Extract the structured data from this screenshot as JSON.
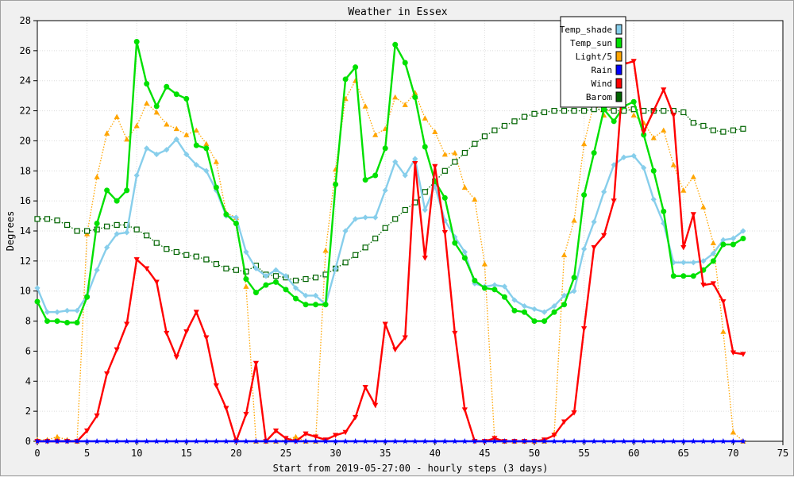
{
  "chart_data": {
    "type": "line",
    "title": "Weather in Essex",
    "xlabel": "Start from 2019-05-27:00 - hourly steps (3 days)",
    "ylabel": "Degrees",
    "xlim": [
      0,
      75
    ],
    "ylim": [
      0,
      28
    ],
    "x_ticks": [
      0,
      5,
      10,
      15,
      20,
      25,
      30,
      35,
      40,
      45,
      50,
      55,
      60,
      65,
      70,
      75
    ],
    "y_ticks": [
      0,
      2,
      4,
      6,
      8,
      10,
      12,
      14,
      16,
      18,
      20,
      22,
      24,
      26,
      28
    ],
    "grid": true,
    "legend_position": "top-right",
    "series": [
      {
        "name": "Temp_shade",
        "color": "#87ceeb",
        "marker": "diamond",
        "style": "solid",
        "values": [
          10.2,
          8.6,
          8.6,
          8.7,
          8.7,
          9.7,
          11.4,
          12.9,
          13.8,
          13.9,
          17.7,
          19.5,
          19.1,
          19.4,
          20.1,
          19.1,
          18.4,
          18.0,
          16.7,
          15.0,
          14.9,
          12.6,
          11.5,
          11.0,
          11.4,
          11.0,
          10.2,
          9.7,
          9.7,
          9.1,
          11.5,
          14.0,
          14.8,
          14.9,
          14.9,
          16.7,
          18.6,
          17.7,
          18.8,
          15.4,
          17.0,
          14.7,
          13.6,
          12.6,
          10.5,
          10.3,
          10.4,
          10.3,
          9.4,
          9.0,
          8.8,
          8.6,
          9.0,
          9.7,
          10.0,
          12.8,
          14.6,
          16.6,
          18.4,
          18.9,
          19.0,
          18.2,
          16.1,
          14.5,
          11.9,
          11.9,
          11.9,
          12.0,
          12.5,
          13.4,
          13.5,
          14.0
        ]
      },
      {
        "name": "Temp_sun",
        "color": "#00e000",
        "marker": "circle",
        "style": "solid",
        "values": [
          9.3,
          8.0,
          8.0,
          7.9,
          7.9,
          9.6,
          14.5,
          16.7,
          16.0,
          16.7,
          26.6,
          23.8,
          22.3,
          23.6,
          23.1,
          22.8,
          19.7,
          19.5,
          16.9,
          15.1,
          14.5,
          10.8,
          9.9,
          10.4,
          10.6,
          10.1,
          9.5,
          9.1,
          9.1,
          9.1,
          17.1,
          24.1,
          24.9,
          17.4,
          17.7,
          19.5,
          26.4,
          25.2,
          22.9,
          19.6,
          17.3,
          16.2,
          13.2,
          12.2,
          10.7,
          10.2,
          10.1,
          9.6,
          8.7,
          8.6,
          8.0,
          8.0,
          8.6,
          9.1,
          10.9,
          16.4,
          19.2,
          22.1,
          21.3,
          22.3,
          22.6,
          20.4,
          18.0,
          15.3,
          11.0,
          11.0,
          11.0,
          11.4,
          12.0,
          13.1,
          13.1,
          13.5
        ]
      },
      {
        "name": "Light/5",
        "color": "#ffa500",
        "marker": "triangle-up",
        "style": "dotted",
        "values": [
          0.1,
          0.1,
          0.3,
          0.1,
          0.0,
          13.8,
          17.6,
          20.5,
          21.6,
          20.1,
          21.0,
          22.5,
          21.9,
          21.1,
          20.8,
          20.4,
          20.7,
          19.8,
          18.6,
          15.2,
          14.9,
          10.3,
          0.0,
          0.0,
          0.0,
          0.1,
          0.3,
          0.0,
          0.0,
          12.7,
          18.1,
          22.8,
          24.0,
          22.3,
          20.4,
          20.8,
          22.9,
          22.4,
          23.2,
          21.5,
          20.6,
          19.1,
          19.2,
          16.9,
          16.1,
          11.8,
          0.1,
          0.0,
          0.0,
          0.0,
          0.0,
          0.0,
          0.5,
          12.4,
          14.7,
          19.8,
          22.5,
          21.7,
          22.4,
          22.7,
          21.7,
          21.2,
          20.2,
          20.7,
          18.4,
          16.7,
          17.6,
          15.6,
          13.2,
          7.3,
          0.6,
          0.0
        ]
      },
      {
        "name": "Rain",
        "color": "#0000ff",
        "marker": "star",
        "style": "solid",
        "values": [
          0,
          0,
          0,
          0,
          0,
          0,
          0,
          0,
          0,
          0,
          0,
          0,
          0,
          0,
          0,
          0,
          0,
          0,
          0,
          0,
          0,
          0,
          0,
          0,
          0,
          0,
          0,
          0,
          0,
          0,
          0,
          0,
          0,
          0,
          0,
          0,
          0,
          0,
          0,
          0,
          0,
          0,
          0,
          0,
          0,
          0,
          0,
          0,
          0,
          0,
          0,
          0,
          0,
          0,
          0,
          0,
          0,
          0,
          0,
          0,
          0,
          0,
          0,
          0,
          0,
          0,
          0,
          0,
          0,
          0,
          0,
          0
        ]
      },
      {
        "name": "Wind",
        "color": "#ff0000",
        "marker": "triangle-down",
        "style": "solid",
        "values": [
          0.0,
          0.0,
          0.0,
          0.0,
          0.0,
          0.7,
          1.7,
          4.5,
          6.1,
          7.8,
          12.1,
          11.5,
          10.6,
          7.2,
          5.6,
          7.3,
          8.6,
          6.9,
          3.7,
          2.2,
          0.0,
          1.8,
          5.2,
          0.0,
          0.7,
          0.2,
          0.0,
          0.5,
          0.3,
          0.1,
          0.4,
          0.6,
          1.6,
          3.6,
          2.4,
          7.8,
          6.1,
          6.9,
          18.5,
          12.2,
          18.3,
          13.9,
          7.2,
          2.1,
          0.0,
          0.0,
          0.2,
          0.0,
          0.0,
          0.0,
          0.0,
          0.1,
          0.4,
          1.3,
          1.9,
          7.5,
          12.9,
          13.7,
          16.0,
          25.1,
          25.3,
          20.6,
          22.0,
          23.4,
          21.7,
          12.9,
          15.1,
          10.4,
          10.5,
          9.3,
          5.9,
          5.8
        ]
      },
      {
        "name": "Barom",
        "color": "#006400",
        "marker": "square",
        "style": "dotted",
        "values": [
          14.8,
          14.8,
          14.7,
          14.4,
          14.0,
          14.0,
          14.1,
          14.3,
          14.4,
          14.4,
          14.1,
          13.7,
          13.2,
          12.8,
          12.6,
          12.4,
          12.3,
          12.1,
          11.8,
          11.5,
          11.4,
          11.3,
          11.7,
          11.1,
          11.0,
          10.9,
          10.7,
          10.8,
          10.9,
          11.1,
          11.5,
          11.9,
          12.4,
          12.9,
          13.5,
          14.2,
          14.8,
          15.4,
          15.9,
          16.6,
          17.3,
          18.0,
          18.6,
          19.2,
          19.8,
          20.3,
          20.7,
          21.0,
          21.3,
          21.6,
          21.8,
          21.9,
          22.0,
          22.0,
          22.0,
          22.0,
          22.1,
          22.1,
          22.0,
          22.0,
          22.1,
          22.0,
          22.0,
          22.0,
          22.0,
          21.9,
          21.2,
          21.0,
          20.7,
          20.6,
          20.7,
          20.8
        ]
      }
    ]
  }
}
